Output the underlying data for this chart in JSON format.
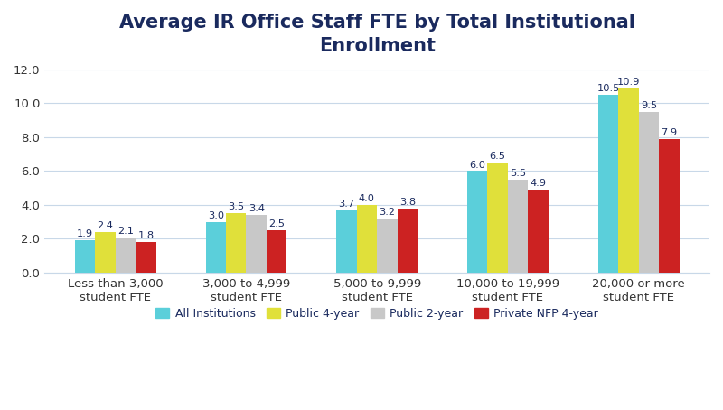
{
  "title": "Average IR Office Staff FTE by Total Institutional\nEnrollment",
  "categories": [
    "Less than 3,000\nstudent FTE",
    "3,000 to 4,999\nstudent FTE",
    "5,000 to 9,999\nstudent FTE",
    "10,000 to 19,999\nstudent FTE",
    "20,000 or more\nstudent FTE"
  ],
  "series": {
    "All Institutions": [
      1.9,
      3.0,
      3.7,
      6.0,
      10.5
    ],
    "Public 4-year": [
      2.4,
      3.5,
      4.0,
      6.5,
      10.9
    ],
    "Public 2-year": [
      2.1,
      3.4,
      3.2,
      5.5,
      9.5
    ],
    "Private NFP 4-year": [
      1.8,
      2.5,
      3.8,
      4.9,
      7.9
    ]
  },
  "colors": {
    "All Institutions": "#5BCFDA",
    "Public 4-year": "#E0E03A",
    "Public 2-year": "#C8C8C8",
    "Private NFP 4-year": "#CC2222"
  },
  "ylim": [
    0,
    12.0
  ],
  "yticks": [
    0.0,
    2.0,
    4.0,
    6.0,
    8.0,
    10.0,
    12.0
  ],
  "title_fontsize": 15,
  "tick_fontsize": 9.5,
  "label_fontsize": 8.2,
  "legend_fontsize": 9,
  "bar_width": 0.155,
  "title_color": "#1a2a5e",
  "axis_label_color": "#333333",
  "background_color": "#ffffff",
  "grid_color": "#c8d8e8"
}
